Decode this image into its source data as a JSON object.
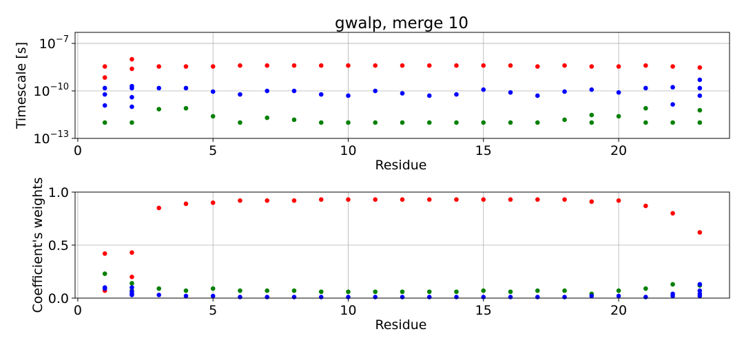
{
  "title": "gwalp, merge 10",
  "chart_data": [
    {
      "type": "scatter",
      "title": "gwalp, merge 10",
      "xlabel": "Residue",
      "ylabel": "Timescale [s]",
      "yscale": "log",
      "xlim": [
        -0.1,
        24.1
      ],
      "ylim": [
        1e-13,
        5e-07
      ],
      "xticks": [
        0,
        5,
        10,
        15,
        20
      ],
      "xtick_labels": [
        "0",
        "5",
        "10",
        "15",
        "20"
      ],
      "yticks": [
        1e-13,
        1e-10,
        1e-07
      ],
      "ytick_labels": [
        {
          "base": "10",
          "exp": "−13"
        },
        {
          "base": "10",
          "exp": "−10"
        },
        {
          "base": "10",
          "exp": "−7"
        }
      ],
      "grid": true,
      "series": [
        {
          "color": "#ff0000",
          "points": [
            [
              1,
              3.5e-09
            ],
            [
              1,
              7e-10
            ],
            [
              2,
              1e-08
            ],
            [
              2,
              2.5e-09
            ],
            [
              3,
              3.5e-09
            ],
            [
              4,
              3.5e-09
            ],
            [
              5,
              3.5e-09
            ],
            [
              6,
              4e-09
            ],
            [
              7,
              4e-09
            ],
            [
              8,
              4e-09
            ],
            [
              9,
              4e-09
            ],
            [
              10,
              4e-09
            ],
            [
              11,
              4e-09
            ],
            [
              12,
              4e-09
            ],
            [
              13,
              4e-09
            ],
            [
              14,
              4e-09
            ],
            [
              15,
              4e-09
            ],
            [
              16,
              4e-09
            ],
            [
              17,
              3.5e-09
            ],
            [
              18,
              4e-09
            ],
            [
              19,
              3.5e-09
            ],
            [
              20,
              3.5e-09
            ],
            [
              21,
              4e-09
            ],
            [
              22,
              3.5e-09
            ],
            [
              23,
              3e-09
            ]
          ]
        },
        {
          "color": "#0000ff",
          "points": [
            [
              1,
              1.5e-10
            ],
            [
              1,
              6e-11
            ],
            [
              1,
              1.2e-11
            ],
            [
              2,
              2e-10
            ],
            [
              2,
              4e-11
            ],
            [
              2,
              1e-11
            ],
            [
              2,
              1.5e-10
            ],
            [
              3,
              1.5e-10
            ],
            [
              4,
              1.5e-10
            ],
            [
              5,
              9e-11
            ],
            [
              6,
              6e-11
            ],
            [
              7,
              1e-10
            ],
            [
              8,
              1e-10
            ],
            [
              9,
              6e-11
            ],
            [
              10,
              5e-11
            ],
            [
              11,
              1e-10
            ],
            [
              12,
              7e-11
            ],
            [
              13,
              5e-11
            ],
            [
              14,
              6e-11
            ],
            [
              15,
              1.2e-10
            ],
            [
              16,
              8e-11
            ],
            [
              17,
              5e-11
            ],
            [
              18,
              9e-11
            ],
            [
              19,
              1.2e-10
            ],
            [
              20,
              8e-11
            ],
            [
              21,
              1.5e-10
            ],
            [
              22,
              1.7e-10
            ],
            [
              22,
              1.4e-11
            ],
            [
              23,
              5e-10
            ],
            [
              23,
              1.5e-10
            ],
            [
              23,
              5e-11
            ]
          ]
        },
        {
          "color": "#008000",
          "points": [
            [
              1,
              1e-12
            ],
            [
              2,
              1e-12
            ],
            [
              3,
              7e-12
            ],
            [
              4,
              8e-12
            ],
            [
              5,
              2.5e-12
            ],
            [
              6,
              1e-12
            ],
            [
              7,
              2e-12
            ],
            [
              8,
              1.5e-12
            ],
            [
              9,
              1e-12
            ],
            [
              10,
              1e-12
            ],
            [
              11,
              1e-12
            ],
            [
              12,
              1e-12
            ],
            [
              13,
              1e-12
            ],
            [
              14,
              1e-12
            ],
            [
              15,
              1e-12
            ],
            [
              16,
              1e-12
            ],
            [
              17,
              1e-12
            ],
            [
              18,
              1.5e-12
            ],
            [
              19,
              3e-12
            ],
            [
              19,
              1e-12
            ],
            [
              20,
              2.5e-12
            ],
            [
              21,
              8e-12
            ],
            [
              21,
              1e-12
            ],
            [
              22,
              1e-12
            ],
            [
              23,
              6e-12
            ],
            [
              23,
              1e-12
            ]
          ]
        }
      ]
    },
    {
      "type": "scatter",
      "xlabel": "Residue",
      "ylabel": "Coefficient's weights",
      "xlim": [
        -0.1,
        24.1
      ],
      "ylim": [
        0,
        1
      ],
      "xticks": [
        0,
        5,
        10,
        15,
        20
      ],
      "xtick_labels": [
        "0",
        "5",
        "10",
        "15",
        "20"
      ],
      "yticks": [
        0,
        0.5,
        1
      ],
      "ytick_labels": [
        "0.0",
        "0.5",
        "1.0"
      ],
      "grid": true,
      "series": [
        {
          "color": "#ff0000",
          "points": [
            [
              1,
              0.42
            ],
            [
              1,
              0.07
            ],
            [
              2,
              0.43
            ],
            [
              2,
              0.2
            ],
            [
              3,
              0.85
            ],
            [
              4,
              0.89
            ],
            [
              5,
              0.9
            ],
            [
              6,
              0.92
            ],
            [
              7,
              0.92
            ],
            [
              8,
              0.92
            ],
            [
              9,
              0.93
            ],
            [
              10,
              0.93
            ],
            [
              11,
              0.93
            ],
            [
              12,
              0.93
            ],
            [
              13,
              0.93
            ],
            [
              14,
              0.93
            ],
            [
              15,
              0.93
            ],
            [
              16,
              0.93
            ],
            [
              17,
              0.93
            ],
            [
              18,
              0.93
            ],
            [
              19,
              0.91
            ],
            [
              20,
              0.92
            ],
            [
              21,
              0.87
            ],
            [
              22,
              0.8
            ],
            [
              23,
              0.62
            ]
          ]
        },
        {
          "color": "#008000",
          "points": [
            [
              1,
              0.23
            ],
            [
              2,
              0.14
            ],
            [
              2,
              0.07
            ],
            [
              3,
              0.09
            ],
            [
              4,
              0.07
            ],
            [
              5,
              0.09
            ],
            [
              6,
              0.07
            ],
            [
              7,
              0.07
            ],
            [
              8,
              0.07
            ],
            [
              9,
              0.06
            ],
            [
              10,
              0.06
            ],
            [
              11,
              0.06
            ],
            [
              12,
              0.06
            ],
            [
              13,
              0.06
            ],
            [
              14,
              0.06
            ],
            [
              15,
              0.07
            ],
            [
              16,
              0.06
            ],
            [
              17,
              0.07
            ],
            [
              18,
              0.07
            ],
            [
              19,
              0.04
            ],
            [
              20,
              0.07
            ],
            [
              21,
              0.09
            ],
            [
              22,
              0.13
            ],
            [
              23,
              0.12
            ]
          ]
        },
        {
          "color": "#0000ff",
          "points": [
            [
              1,
              0.1
            ],
            [
              1,
              0.09
            ],
            [
              2,
              0.1
            ],
            [
              2,
              0.06
            ],
            [
              2,
              0.04
            ],
            [
              2,
              0.03
            ],
            [
              3,
              0.03
            ],
            [
              4,
              0.02
            ],
            [
              5,
              0.02
            ],
            [
              6,
              0.01
            ],
            [
              7,
              0.01
            ],
            [
              8,
              0.01
            ],
            [
              9,
              0.01
            ],
            [
              10,
              0.01
            ],
            [
              11,
              0.01
            ],
            [
              12,
              0.01
            ],
            [
              13,
              0.01
            ],
            [
              14,
              0.01
            ],
            [
              15,
              0.01
            ],
            [
              16,
              0.01
            ],
            [
              17,
              0.01
            ],
            [
              18,
              0.01
            ],
            [
              19,
              0.02
            ],
            [
              20,
              0.02
            ],
            [
              21,
              0.01
            ],
            [
              22,
              0.04
            ],
            [
              22,
              0.02
            ],
            [
              23,
              0.13
            ],
            [
              23,
              0.07
            ],
            [
              23,
              0.04
            ],
            [
              23,
              0.02
            ]
          ]
        }
      ]
    }
  ]
}
